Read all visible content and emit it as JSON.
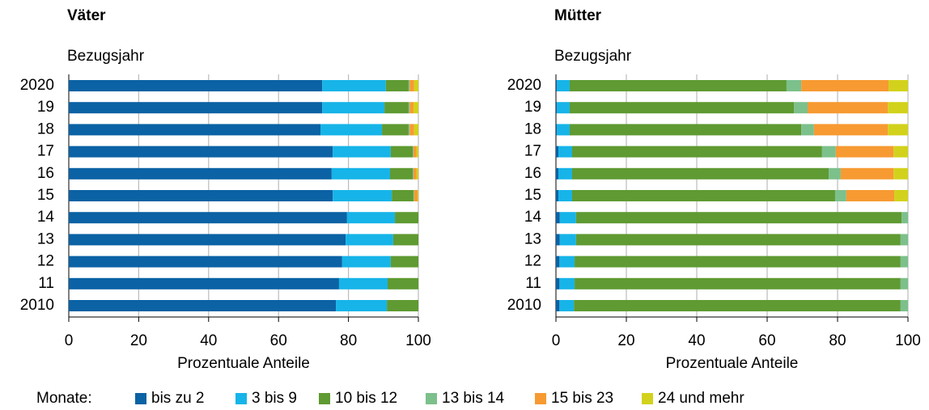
{
  "legend_title": "Monate:",
  "chart_data": [
    {
      "type": "stacked_barh",
      "title": "Väter",
      "subtitle": "Bezugsjahr",
      "xlabel": "Prozentuale Anteile",
      "categories": [
        "2020",
        "19",
        "18",
        "17",
        "16",
        "15",
        "14",
        "13",
        "12",
        "11",
        "2010"
      ],
      "xlim": [
        0,
        100
      ],
      "xticks": [
        0,
        20,
        40,
        60,
        80,
        100
      ],
      "grid": true,
      "series": [
        {
          "name": "bis zu 2",
          "color": "#0b62a4",
          "values": [
            72.5,
            72.5,
            72.0,
            75.5,
            75.2,
            75.5,
            79.6,
            79.2,
            78.2,
            77.3,
            76.4
          ]
        },
        {
          "name": "3 bis 9",
          "color": "#16b4e8",
          "values": [
            18.2,
            17.8,
            17.6,
            16.6,
            16.7,
            16.9,
            13.7,
            13.6,
            13.9,
            13.9,
            14.6
          ]
        },
        {
          "name": "10 bis 12",
          "color": "#5f9a32",
          "values": [
            6.5,
            6.9,
            7.6,
            6.3,
            6.5,
            6.2,
            6.7,
            7.2,
            7.9,
            8.8,
            9.0
          ]
        },
        {
          "name": "13 bis 14",
          "color": "#7cc08c",
          "values": [
            0.3,
            0.3,
            0.3,
            0.2,
            0.2,
            0.2,
            0,
            0,
            0,
            0,
            0
          ]
        },
        {
          "name": "15 bis 23",
          "color": "#f79a32",
          "values": [
            1.3,
            1.1,
            1.3,
            0.9,
            0.9,
            1.0,
            0,
            0,
            0,
            0,
            0
          ]
        },
        {
          "name": "24 und mehr",
          "color": "#d2d21c",
          "values": [
            1.2,
            1.4,
            1.2,
            0.5,
            0.5,
            0.2,
            0,
            0,
            0,
            0,
            0
          ]
        }
      ]
    },
    {
      "type": "stacked_barh",
      "title": "Mütter",
      "subtitle": "Bezugsjahr",
      "xlabel": "Prozentuale Anteile",
      "categories": [
        "2020",
        "19",
        "18",
        "17",
        "16",
        "15",
        "14",
        "13",
        "12",
        "11",
        "2010"
      ],
      "xlim": [
        0,
        100
      ],
      "xticks": [
        0,
        20,
        40,
        60,
        80,
        100
      ],
      "grid": true,
      "series": [
        {
          "name": "bis zu 2",
          "color": "#0b62a4",
          "values": [
            0.3,
            0.3,
            0.3,
            0.7,
            0.7,
            0.7,
            1.1,
            1.1,
            1.0,
            1.0,
            1.0
          ]
        },
        {
          "name": "3 bis 9",
          "color": "#16b4e8",
          "values": [
            3.6,
            3.6,
            3.6,
            3.9,
            3.9,
            3.9,
            4.6,
            4.6,
            4.3,
            4.3,
            4.1
          ]
        },
        {
          "name": "10 bis 12",
          "color": "#5f9a32",
          "values": [
            61.6,
            63.7,
            65.8,
            71.0,
            72.9,
            74.7,
            92.5,
            92.2,
            92.6,
            92.6,
            92.8
          ]
        },
        {
          "name": "13 bis 14",
          "color": "#7cc08c",
          "values": [
            4.2,
            3.9,
            3.6,
            3.9,
            3.4,
            3.2,
            1.8,
            2.1,
            2.1,
            2.1,
            2.1
          ]
        },
        {
          "name": "15 bis 23",
          "color": "#f79a32",
          "values": [
            24.8,
            22.8,
            21.0,
            16.4,
            15.0,
            13.6,
            0,
            0,
            0,
            0,
            0
          ]
        },
        {
          "name": "24 und mehr",
          "color": "#d2d21c",
          "values": [
            5.5,
            5.7,
            5.7,
            4.1,
            4.1,
            3.9,
            0,
            0,
            0,
            0,
            0
          ]
        }
      ]
    }
  ]
}
